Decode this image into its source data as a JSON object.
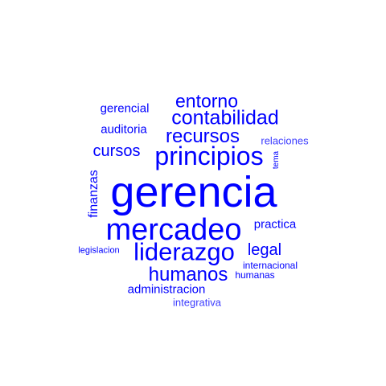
{
  "word_cloud": {
    "color": "#0000ff",
    "words": [
      {
        "text": "gerencia",
        "orientation": "horizontal"
      },
      {
        "text": "mercadeo",
        "orientation": "horizontal"
      },
      {
        "text": "principios",
        "orientation": "horizontal"
      },
      {
        "text": "liderazgo",
        "orientation": "horizontal"
      },
      {
        "text": "contabilidad",
        "orientation": "horizontal"
      },
      {
        "text": "recursos",
        "orientation": "horizontal"
      },
      {
        "text": "humanos",
        "orientation": "horizontal"
      },
      {
        "text": "entorno",
        "orientation": "horizontal"
      },
      {
        "text": "cursos",
        "orientation": "horizontal"
      },
      {
        "text": "legal",
        "orientation": "horizontal"
      },
      {
        "text": "finanzas",
        "orientation": "vertical"
      },
      {
        "text": "auditoria",
        "orientation": "horizontal"
      },
      {
        "text": "gerencial",
        "orientation": "horizontal"
      },
      {
        "text": "practica",
        "orientation": "horizontal"
      },
      {
        "text": "relaciones",
        "orientation": "horizontal"
      },
      {
        "text": "administracion",
        "orientation": "horizontal"
      },
      {
        "text": "integrativa",
        "orientation": "horizontal"
      },
      {
        "text": "internacional",
        "orientation": "horizontal"
      },
      {
        "text": "humanas",
        "orientation": "horizontal"
      },
      {
        "text": "legislacion",
        "orientation": "horizontal"
      },
      {
        "text": "tema",
        "orientation": "vertical"
      }
    ]
  }
}
